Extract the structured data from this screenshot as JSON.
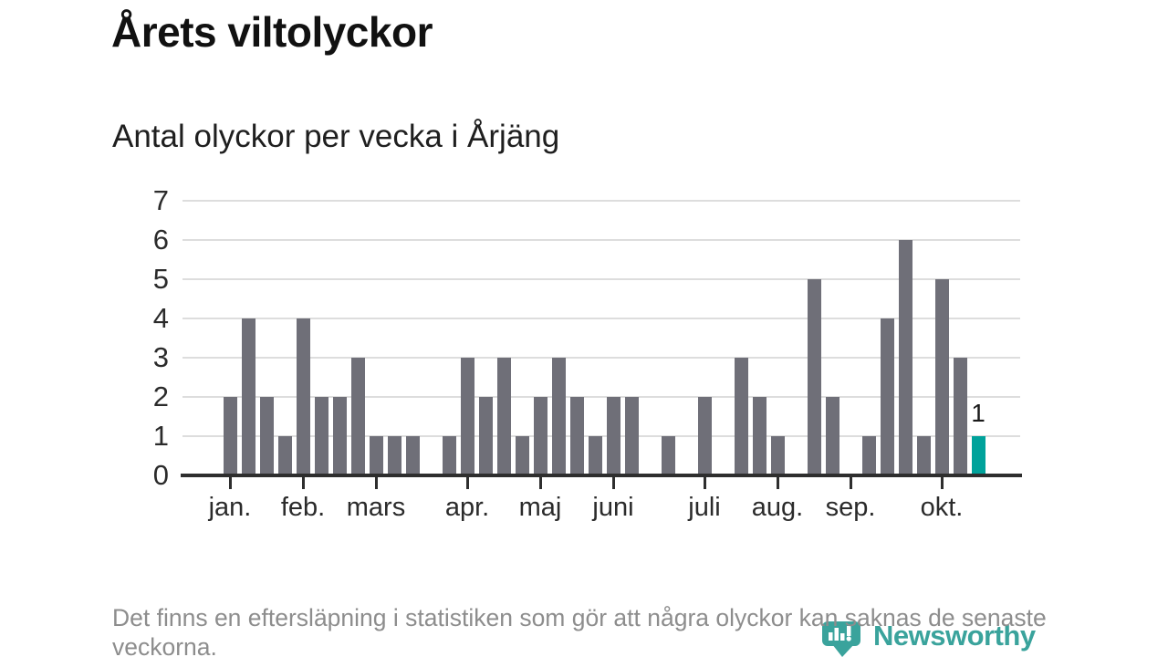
{
  "header": {
    "title": "Årets viltolyckor",
    "subtitle": "Antal olyckor per vecka i Årjäng"
  },
  "chart_data": {
    "type": "bar",
    "title": "Antal olyckor per vecka i Årjäng",
    "x_unit": "vecka",
    "values": [
      2,
      4,
      2,
      1,
      4,
      2,
      2,
      3,
      1,
      1,
      1,
      0,
      1,
      3,
      2,
      3,
      1,
      2,
      3,
      2,
      1,
      2,
      2,
      0,
      1,
      0,
      2,
      0,
      3,
      2,
      1,
      0,
      5,
      2,
      0,
      1,
      4,
      6,
      1,
      5,
      3,
      1
    ],
    "month_ticks": [
      {
        "index": 0,
        "label": "jan."
      },
      {
        "index": 4,
        "label": "feb."
      },
      {
        "index": 8,
        "label": "mars"
      },
      {
        "index": 13,
        "label": "apr."
      },
      {
        "index": 17,
        "label": "maj"
      },
      {
        "index": 21,
        "label": "juni"
      },
      {
        "index": 26,
        "label": "juli"
      },
      {
        "index": 30,
        "label": "aug."
      },
      {
        "index": 34,
        "label": "sep."
      },
      {
        "index": 39,
        "label": "okt."
      }
    ],
    "yticks": [
      0,
      1,
      2,
      3,
      4,
      5,
      6,
      7
    ],
    "ylim": [
      0,
      7
    ],
    "grid": true,
    "legend": null,
    "bar_color": "#6f6f78",
    "grid_color": "#dddddd",
    "axis_color": "#2e2e2e",
    "highlight": {
      "index": 41,
      "value": 1,
      "label": "1",
      "color": "#00a29b"
    }
  },
  "footer": {
    "note": "Det finns en eftersläpning i statistiken som gör att några olyckor kan saknas de senaste veckorna."
  },
  "logo": {
    "text": "Newsworthy",
    "color": "#3aa39c"
  }
}
